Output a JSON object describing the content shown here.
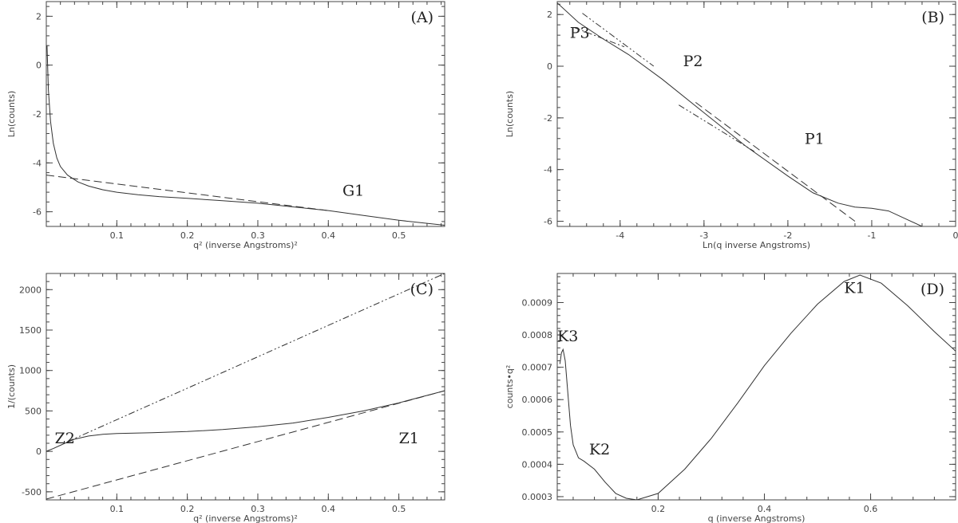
{
  "chart_data": [
    {
      "panel": "(A)",
      "type": "line",
      "xlabel": "q² (inverse Angstroms)²",
      "ylabel": "Ln(counts)",
      "xlim": [
        0.0,
        0.565
      ],
      "ylim": [
        -6.6,
        2.6
      ],
      "xticks": [
        0.1,
        0.2,
        0.3,
        0.4,
        0.5
      ],
      "yticks": [
        -6,
        -4,
        -2,
        0,
        2
      ],
      "annotations": [
        {
          "text": "G1",
          "x": 0.42,
          "y": -5.35
        }
      ],
      "series": [
        {
          "style": "solid",
          "x": [
            0.001,
            0.003,
            0.006,
            0.01,
            0.015,
            0.02,
            0.03,
            0.045,
            0.06,
            0.08,
            0.1,
            0.13,
            0.16,
            0.2,
            0.25,
            0.3,
            0.35,
            0.4,
            0.45,
            0.5,
            0.565
          ],
          "y": [
            0.8,
            -1.0,
            -2.3,
            -3.2,
            -3.8,
            -4.15,
            -4.5,
            -4.78,
            -4.95,
            -5.1,
            -5.2,
            -5.3,
            -5.38,
            -5.45,
            -5.55,
            -5.65,
            -5.8,
            -5.95,
            -6.15,
            -6.35,
            -6.55
          ]
        },
        {
          "style": "dashed",
          "x": [
            0.0,
            0.4
          ],
          "y": [
            -4.5,
            -5.95
          ]
        }
      ]
    },
    {
      "panel": "(B)",
      "type": "line",
      "xlabel": "Ln(q inverse Angstroms)",
      "ylabel": "Ln(counts)",
      "xlim": [
        -4.75,
        0.0
      ],
      "ylim": [
        -6.2,
        2.5
      ],
      "xticks": [
        -4,
        -3,
        -2,
        -1,
        0
      ],
      "yticks": [
        -6,
        -4,
        -2,
        0,
        2
      ],
      "annotations": [
        {
          "text": "P3",
          "x": -4.6,
          "y": 1.1
        },
        {
          "text": "P2",
          "x": -3.25,
          "y": 0.0
        },
        {
          "text": "P1",
          "x": -1.8,
          "y": -3.0
        }
      ],
      "series": [
        {
          "style": "solid",
          "x": [
            -4.75,
            -4.5,
            -4.2,
            -3.9,
            -3.5,
            -3.0,
            -2.5,
            -2.0,
            -1.7,
            -1.4,
            -1.2,
            -1.0,
            -0.8,
            -0.6,
            -0.4
          ],
          "y": [
            2.45,
            1.7,
            1.05,
            0.45,
            -0.5,
            -1.8,
            -3.1,
            -4.25,
            -4.9,
            -5.3,
            -5.45,
            -5.5,
            -5.6,
            -5.9,
            -6.2
          ]
        },
        {
          "style": "dashed",
          "x": [
            -3.1,
            -1.2
          ],
          "y": [
            -1.4,
            -6.0
          ]
        },
        {
          "style": "dash-dot-dot",
          "x": [
            -4.45,
            -3.6
          ],
          "y": [
            2.05,
            0.0
          ]
        },
        {
          "style": "dash-dot-dot",
          "x": [
            -3.3,
            -2.4
          ],
          "y": [
            -1.5,
            -3.3
          ]
        },
        {
          "style": "dash-dot",
          "x": [
            -4.55,
            -3.95
          ],
          "y": [
            1.5,
            0.75
          ]
        }
      ]
    },
    {
      "panel": "(C)",
      "type": "line",
      "xlabel": "q² (inverse Angstroms)²",
      "ylabel": "1/(counts)",
      "xlim": [
        0.0,
        0.565
      ],
      "ylim": [
        -600,
        2200
      ],
      "xticks": [
        0.1,
        0.2,
        0.3,
        0.4,
        0.5
      ],
      "yticks": [
        -500,
        0,
        500,
        1000,
        1500,
        2000
      ],
      "annotations": [
        {
          "text": "Z2",
          "x": 0.012,
          "y": 100
        },
        {
          "text": "Z1",
          "x": 0.5,
          "y": 100
        }
      ],
      "series": [
        {
          "style": "solid",
          "x": [
            0.0,
            0.01,
            0.02,
            0.03,
            0.04,
            0.06,
            0.08,
            0.1,
            0.15,
            0.2,
            0.25,
            0.3,
            0.35,
            0.4,
            0.45,
            0.5,
            0.565
          ],
          "y": [
            0,
            35,
            75,
            115,
            150,
            190,
            210,
            220,
            230,
            245,
            270,
            305,
            350,
            420,
            500,
            600,
            750
          ]
        },
        {
          "style": "dashed",
          "x": [
            0.0,
            0.565
          ],
          "y": [
            -590,
            750
          ]
        },
        {
          "style": "dash-dot-dot",
          "x": [
            0.03,
            0.565
          ],
          "y": [
            120,
            2200
          ]
        }
      ]
    },
    {
      "panel": "(D)",
      "type": "line",
      "xlabel": "q (inverse Angstroms)",
      "ylabel": "counts•q²",
      "xlim": [
        0.01,
        0.76
      ],
      "ylim": [
        0.00029,
        0.00099
      ],
      "xticks": [
        0.2,
        0.4,
        0.6
      ],
      "xticklabels": [
        "0.2",
        "0.4",
        "0.6"
      ],
      "yticks": [
        0.0003,
        0.0004,
        0.0005,
        0.0006,
        0.0007,
        0.0008,
        0.0009
      ],
      "yticklabels": [
        "0.0003",
        "0.0004",
        "0.0005",
        "0.0006",
        "0.0007",
        "0.0008",
        "0.0009"
      ],
      "annotations": [
        {
          "text": "K3",
          "x": 0.01,
          "y": 0.00078
        },
        {
          "text": "K2",
          "x": 0.07,
          "y": 0.00043
        },
        {
          "text": "K1",
          "x": 0.55,
          "y": 0.00093
        }
      ],
      "series": [
        {
          "style": "solid",
          "x": [
            0.015,
            0.018,
            0.021,
            0.025,
            0.03,
            0.035,
            0.04,
            0.05,
            0.06,
            0.08,
            0.1,
            0.12,
            0.14,
            0.16,
            0.2,
            0.25,
            0.3,
            0.35,
            0.4,
            0.45,
            0.5,
            0.55,
            0.58,
            0.62,
            0.67,
            0.72,
            0.76
          ],
          "y": [
            0.00071,
            0.000745,
            0.000755,
            0.00072,
            0.00062,
            0.00052,
            0.00046,
            0.00042,
            0.00041,
            0.000385,
            0.000345,
            0.00031,
            0.000295,
            0.00029,
            0.00031,
            0.000385,
            0.00048,
            0.00059,
            0.000705,
            0.000805,
            0.000895,
            0.000965,
            0.000985,
            0.00096,
            0.00089,
            0.00081,
            0.00075
          ]
        }
      ]
    }
  ]
}
